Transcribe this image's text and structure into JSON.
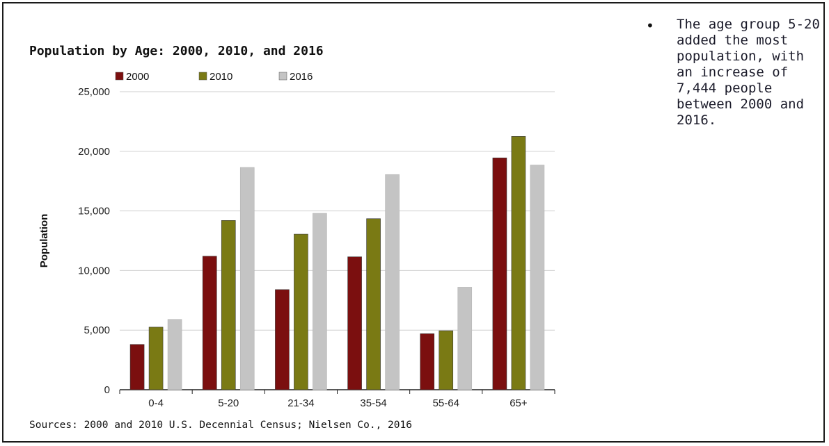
{
  "chart_data": {
    "type": "bar",
    "title": "Population by Age: 2000, 2010, and 2016",
    "ylabel": "Population",
    "xlabel": "",
    "categories": [
      "0-4",
      "5-20",
      "21-34",
      "35-54",
      "55-64",
      "65+"
    ],
    "series": [
      {
        "name": "2000",
        "color": "#7b0f0f",
        "values": [
          3800,
          11200,
          8400,
          11150,
          4700,
          19450
        ]
      },
      {
        "name": "2010",
        "color": "#7a7a14",
        "values": [
          5250,
          14200,
          13050,
          14350,
          4950,
          21250
        ]
      },
      {
        "name": "2016",
        "color": "#c4c4c4",
        "values": [
          5900,
          18650,
          14800,
          18050,
          8600,
          18850
        ]
      }
    ],
    "ylim": [
      0,
      25000
    ],
    "yticks": [
      "0",
      "5,000",
      "10,000",
      "15,000",
      "20,000",
      "25,000"
    ],
    "grid": true,
    "legend": "top-left"
  },
  "source": "Sources: 2000 and 2010 U.S. Decennial Census; Nielsen Co., 2016",
  "bullet": {
    "marker": "•",
    "text": "The age group 5-20 added the most population, with an increase of 7,444 people between 2000 and 2016."
  }
}
